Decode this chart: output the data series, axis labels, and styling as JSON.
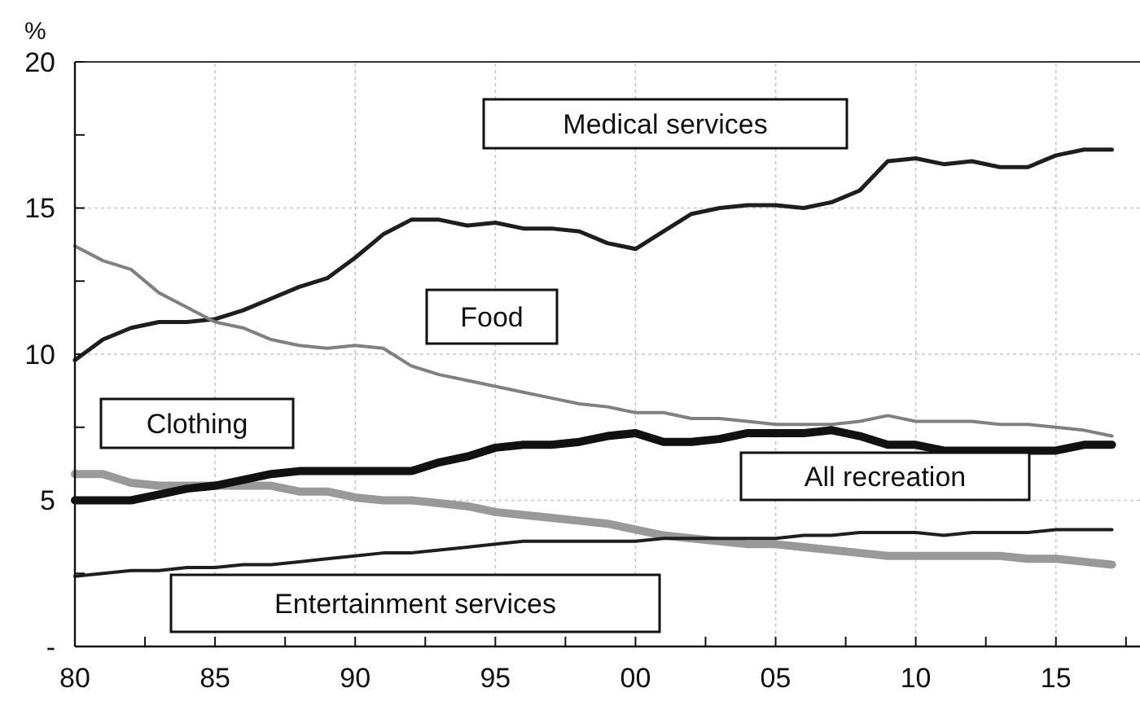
{
  "chart_data": {
    "type": "line",
    "ylabel": "%",
    "x": [
      1980,
      1981,
      1982,
      1983,
      1984,
      1985,
      1986,
      1987,
      1988,
      1989,
      1990,
      1991,
      1992,
      1993,
      1994,
      1995,
      1996,
      1997,
      1998,
      1999,
      2000,
      2001,
      2002,
      2003,
      2004,
      2005,
      2006,
      2007,
      2008,
      2009,
      2010,
      2011,
      2012,
      2013,
      2014,
      2015,
      2016,
      2017
    ],
    "series": [
      {
        "name": "Medical services",
        "color": "#1e1e1e",
        "values": [
          9.8,
          10.5,
          10.9,
          11.1,
          11.1,
          11.2,
          11.5,
          11.9,
          12.3,
          12.6,
          13.3,
          14.1,
          14.6,
          14.6,
          14.4,
          14.5,
          14.3,
          14.3,
          14.2,
          13.8,
          13.6,
          14.2,
          14.8,
          15.0,
          15.1,
          15.1,
          15.0,
          15.2,
          15.6,
          16.6,
          16.7,
          16.5,
          16.6,
          16.4,
          16.4,
          16.8,
          17.0,
          17.0
        ]
      },
      {
        "name": "Food",
        "color": "#808080",
        "values": [
          13.7,
          13.2,
          12.9,
          12.1,
          11.6,
          11.1,
          10.9,
          10.5,
          10.3,
          10.2,
          10.3,
          10.2,
          9.6,
          9.3,
          9.1,
          8.9,
          8.7,
          8.5,
          8.3,
          8.2,
          8.0,
          8.0,
          7.8,
          7.8,
          7.7,
          7.6,
          7.6,
          7.6,
          7.7,
          7.9,
          7.7,
          7.7,
          7.7,
          7.6,
          7.6,
          7.5,
          7.4,
          7.2
        ]
      },
      {
        "name": "Clothing",
        "color": "#999999",
        "values": [
          5.9,
          5.9,
          5.6,
          5.5,
          5.5,
          5.5,
          5.5,
          5.5,
          5.3,
          5.3,
          5.1,
          5.0,
          5.0,
          4.9,
          4.8,
          4.6,
          4.5,
          4.4,
          4.3,
          4.2,
          4.0,
          3.8,
          3.7,
          3.6,
          3.5,
          3.5,
          3.4,
          3.3,
          3.2,
          3.1,
          3.1,
          3.1,
          3.1,
          3.1,
          3.0,
          3.0,
          2.9,
          2.8
        ]
      },
      {
        "name": "All recreation",
        "color": "#111111",
        "values": [
          5.0,
          5.0,
          5.0,
          5.2,
          5.4,
          5.5,
          5.7,
          5.9,
          6.0,
          6.0,
          6.0,
          6.0,
          6.0,
          6.3,
          6.5,
          6.8,
          6.9,
          6.9,
          7.0,
          7.2,
          7.3,
          7.0,
          7.0,
          7.1,
          7.3,
          7.3,
          7.3,
          7.4,
          7.2,
          6.9,
          6.9,
          6.7,
          6.7,
          6.7,
          6.7,
          6.7,
          6.9,
          6.9
        ]
      },
      {
        "name": "Entertainment services",
        "color": "#1e1e1e",
        "values": [
          2.4,
          2.5,
          2.6,
          2.6,
          2.7,
          2.7,
          2.8,
          2.8,
          2.9,
          3.0,
          3.1,
          3.2,
          3.2,
          3.3,
          3.4,
          3.5,
          3.6,
          3.6,
          3.6,
          3.6,
          3.6,
          3.7,
          3.7,
          3.7,
          3.7,
          3.7,
          3.8,
          3.8,
          3.9,
          3.9,
          3.9,
          3.8,
          3.9,
          3.9,
          3.9,
          4.0,
          4.0,
          4.0
        ]
      }
    ],
    "xlim": [
      1980,
      2018
    ],
    "xticks": [
      {
        "value": 1980,
        "label": "80"
      },
      {
        "value": 1982.5,
        "label": null
      },
      {
        "value": 1985,
        "label": "85"
      },
      {
        "value": 1987.5,
        "label": null
      },
      {
        "value": 1990,
        "label": "90"
      },
      {
        "value": 1992.5,
        "label": null
      },
      {
        "value": 1995,
        "label": "95"
      },
      {
        "value": 1997.5,
        "label": null
      },
      {
        "value": 2000,
        "label": "00"
      },
      {
        "value": 2002.5,
        "label": null
      },
      {
        "value": 2005,
        "label": "05"
      },
      {
        "value": 2007.5,
        "label": null
      },
      {
        "value": 2010,
        "label": "10"
      },
      {
        "value": 2012.5,
        "label": null
      },
      {
        "value": 2015,
        "label": "15"
      },
      {
        "value": 2017.5,
        "label": null
      }
    ],
    "ylim": [
      0,
      20
    ],
    "yticks": [
      {
        "value": 0,
        "label": "-"
      },
      {
        "value": 2.5,
        "label": null
      },
      5,
      {
        "value": 7.5,
        "label": null
      },
      10,
      {
        "value": 12.5,
        "label": null
      },
      15,
      {
        "value": 17.5,
        "label": null
      },
      20
    ],
    "grid": true,
    "marker": "none",
    "line_style": "solid"
  }
}
